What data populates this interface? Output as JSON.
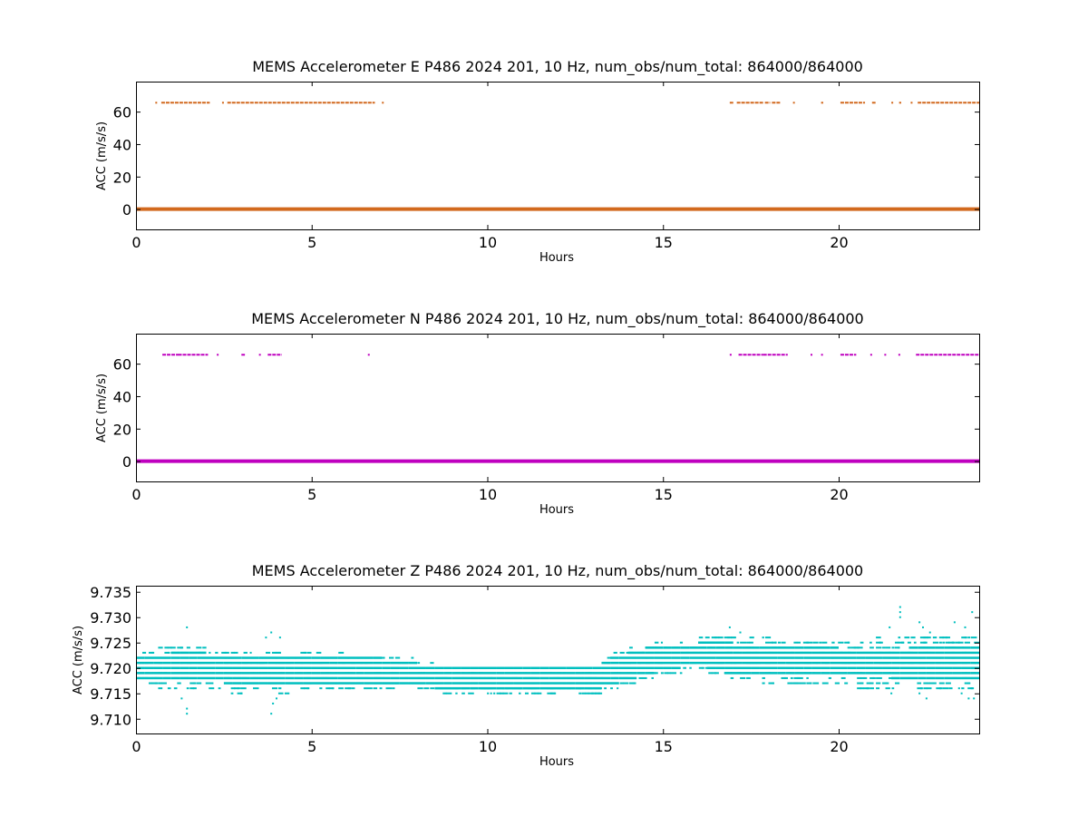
{
  "chart_data": [
    {
      "type": "scatter",
      "title": "MEMS Accelerometer E P486 2024 201, 10 Hz, num_obs/num_total: 864000/864000",
      "xlabel": "Hours",
      "ylabel": "ACC (m/s/s)",
      "xlim": [
        0,
        24
      ],
      "ylim": [
        -12.5,
        78.5
      ],
      "xticks": [
        0,
        5,
        10,
        15,
        20
      ],
      "xtick_labels": [
        "0",
        "5",
        "10",
        "15",
        "20"
      ],
      "yticks": [
        0,
        20,
        40,
        60
      ],
      "ytick_labels": [
        "0",
        "20",
        "40",
        "60"
      ],
      "color": "#d2691e",
      "grid": false,
      "series": [
        {
          "baseline": {
            "x": [
              0,
              24
            ],
            "y": 0
          },
          "spike_level": 65.5,
          "spike_segments": [
            [
              0.55,
              0.58
            ],
            [
              0.72,
              2.1
            ],
            [
              2.45,
              2.5
            ],
            [
              2.6,
              6.8
            ],
            [
              7.0,
              7.05
            ],
            [
              16.9,
              17.0
            ],
            [
              17.1,
              17.85
            ],
            [
              17.9,
              18.05
            ],
            [
              18.1,
              18.35
            ],
            [
              18.7,
              18.75
            ],
            [
              19.5,
              19.56
            ],
            [
              20.05,
              20.75
            ],
            [
              20.95,
              21.05
            ],
            [
              21.5,
              21.55
            ],
            [
              21.72,
              21.78
            ],
            [
              22.05,
              22.1
            ],
            [
              22.25,
              24.0
            ]
          ]
        }
      ]
    },
    {
      "type": "scatter",
      "title": "MEMS Accelerometer N P486 2024 201, 10 Hz, num_obs/num_total: 864000/864000",
      "xlabel": "Hours",
      "ylabel": "ACC (m/s/s)",
      "xlim": [
        0,
        24
      ],
      "ylim": [
        -12.5,
        78.5
      ],
      "xticks": [
        0,
        5,
        10,
        15,
        20
      ],
      "xtick_labels": [
        "0",
        "5",
        "10",
        "15",
        "20"
      ],
      "yticks": [
        0,
        20,
        40,
        60
      ],
      "ytick_labels": [
        "0",
        "20",
        "40",
        "60"
      ],
      "color": "#bf00bf",
      "grid": false,
      "series": [
        {
          "baseline": {
            "x": [
              0,
              24
            ],
            "y": 0
          },
          "spike_level": 65.5,
          "spike_segments": [
            [
              0.75,
              1.2
            ],
            [
              1.2,
              2.05
            ],
            [
              2.3,
              2.35
            ],
            [
              3.0,
              3.1
            ],
            [
              3.5,
              3.55
            ],
            [
              3.75,
              4.15
            ],
            [
              6.6,
              6.65
            ],
            [
              16.9,
              16.95
            ],
            [
              17.15,
              17.85
            ],
            [
              17.85,
              18.55
            ],
            [
              19.2,
              19.25
            ],
            [
              19.5,
              19.55
            ],
            [
              20.05,
              20.5
            ],
            [
              20.9,
              20.95
            ],
            [
              21.3,
              21.35
            ],
            [
              21.7,
              21.75
            ],
            [
              22.2,
              24.0
            ]
          ]
        }
      ]
    },
    {
      "type": "scatter",
      "title": "MEMS Accelerometer Z P486 2024 201, 10 Hz, num_obs/num_total: 864000/864000",
      "xlabel": "Hours",
      "ylabel": "ACC (m/s/s)",
      "xlim": [
        0,
        24
      ],
      "ylim": [
        9.7071,
        9.7362
      ],
      "xticks": [
        0,
        5,
        10,
        15,
        20
      ],
      "xtick_labels": [
        "0",
        "5",
        "10",
        "15",
        "20"
      ],
      "yticks": [
        9.71,
        9.715,
        9.72,
        9.725,
        9.73,
        9.735
      ],
      "ytick_labels": [
        "9.710",
        "9.715",
        "9.720",
        "9.725",
        "9.730",
        "9.735"
      ],
      "color": "#00bfbf",
      "grid": false,
      "quantization_step": 0.001,
      "series": [
        {
          "dense_band": {
            "x": [
              0,
              1,
              2,
              3,
              4,
              5,
              6,
              7,
              8,
              9,
              10,
              11,
              12,
              13,
              13.5,
              14,
              14.5,
              15,
              16,
              17,
              18,
              19,
              20,
              21,
              22,
              23,
              24
            ],
            "low": [
              9.718,
              9.718,
              9.718,
              9.717,
              9.717,
              9.717,
              9.717,
              9.717,
              9.717,
              9.716,
              9.716,
              9.716,
              9.716,
              9.716,
              9.717,
              9.718,
              9.719,
              9.72,
              9.721,
              9.719,
              9.719,
              9.719,
              9.719,
              9.719,
              9.718,
              9.718,
              9.718
            ],
            "high": [
              9.722,
              9.723,
              9.723,
              9.722,
              9.722,
              9.722,
              9.722,
              9.722,
              9.721,
              9.72,
              9.72,
              9.72,
              9.72,
              9.72,
              9.722,
              9.723,
              9.724,
              9.724,
              9.725,
              9.725,
              9.724,
              9.724,
              9.724,
              9.723,
              9.724,
              9.724,
              9.724
            ]
          },
          "sparse_band": {
            "x": [
              0,
              1,
              2,
              3,
              4,
              5,
              6,
              7,
              8,
              9,
              10,
              11,
              12,
              13,
              13.5,
              14,
              14.5,
              15,
              16,
              17,
              18,
              19,
              20,
              21,
              22,
              23,
              24
            ],
            "low": [
              9.717,
              9.716,
              9.716,
              9.715,
              9.715,
              9.716,
              9.716,
              9.716,
              9.716,
              9.715,
              9.715,
              9.715,
              9.715,
              9.715,
              9.716,
              9.717,
              9.718,
              9.719,
              9.72,
              9.718,
              9.717,
              9.717,
              9.717,
              9.716,
              9.716,
              9.716,
              9.716
            ],
            "high": [
              9.723,
              9.725,
              9.724,
              9.723,
              9.724,
              9.723,
              9.723,
              9.722,
              9.722,
              9.72,
              9.72,
              9.72,
              9.72,
              9.72,
              9.723,
              9.724,
              9.725,
              9.725,
              9.726,
              9.727,
              9.726,
              9.725,
              9.725,
              9.726,
              9.726,
              9.726,
              9.726
            ]
          },
          "outliers": [
            [
              1.45,
              9.711
            ],
            [
              1.45,
              9.712
            ],
            [
              1.45,
              9.728
            ],
            [
              1.3,
              9.714
            ],
            [
              3.85,
              9.711
            ],
            [
              3.9,
              9.713
            ],
            [
              3.85,
              9.727
            ],
            [
              3.7,
              9.726
            ],
            [
              4.1,
              9.726
            ],
            [
              4.0,
              9.714
            ],
            [
              16.9,
              9.728
            ],
            [
              17.2,
              9.727
            ],
            [
              21.75,
              9.732
            ],
            [
              21.75,
              9.731
            ],
            [
              21.75,
              9.73
            ],
            [
              21.5,
              9.715
            ],
            [
              22.3,
              9.715
            ],
            [
              22.5,
              9.714
            ],
            [
              22.3,
              9.729
            ],
            [
              22.4,
              9.728
            ],
            [
              22.6,
              9.727
            ],
            [
              23.3,
              9.729
            ],
            [
              23.8,
              9.731
            ],
            [
              23.85,
              9.714
            ],
            [
              23.7,
              9.714
            ],
            [
              23.5,
              9.715
            ],
            [
              21.45,
              9.728
            ],
            [
              23.6,
              9.728
            ]
          ]
        }
      ]
    }
  ]
}
